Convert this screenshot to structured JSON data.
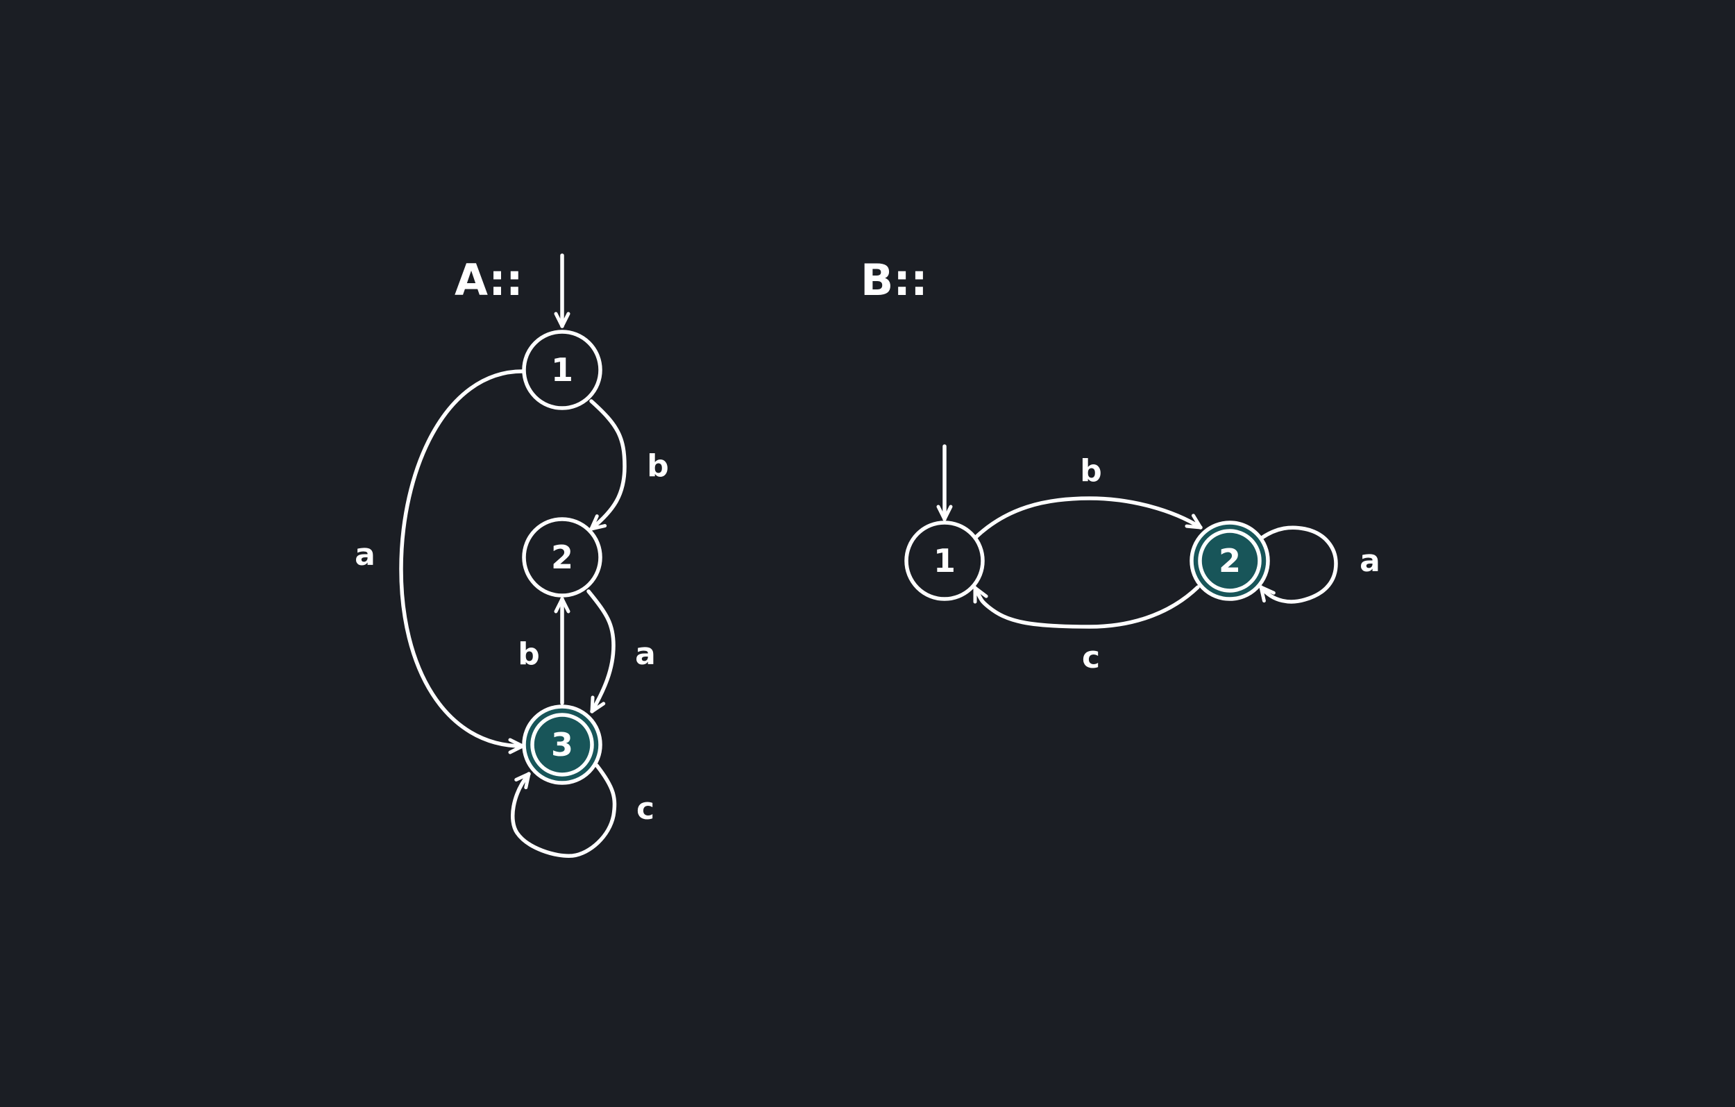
{
  "colors": {
    "background": "#1b1e24",
    "stroke": "#ffffff",
    "accept_fill": "#185559"
  },
  "automaton_a": {
    "title": "A::",
    "states": {
      "s1": "1",
      "s2": "2",
      "s3": "3"
    },
    "accepting": [
      "3"
    ],
    "start": "1",
    "transitions": [
      {
        "from": "1",
        "to": "3",
        "label": "a"
      },
      {
        "from": "1",
        "to": "2",
        "label": "b"
      },
      {
        "from": "2",
        "to": "3",
        "label": "a"
      },
      {
        "from": "3",
        "to": "2",
        "label": "b"
      },
      {
        "from": "3",
        "to": "3",
        "label": "c"
      }
    ]
  },
  "automaton_b": {
    "title": "B::",
    "states": {
      "s1": "1",
      "s2": "2"
    },
    "accepting": [
      "2"
    ],
    "start": "1",
    "transitions": [
      {
        "from": "1",
        "to": "2",
        "label": "b"
      },
      {
        "from": "2",
        "to": "1",
        "label": "c"
      },
      {
        "from": "2",
        "to": "2",
        "label": "a"
      }
    ]
  }
}
